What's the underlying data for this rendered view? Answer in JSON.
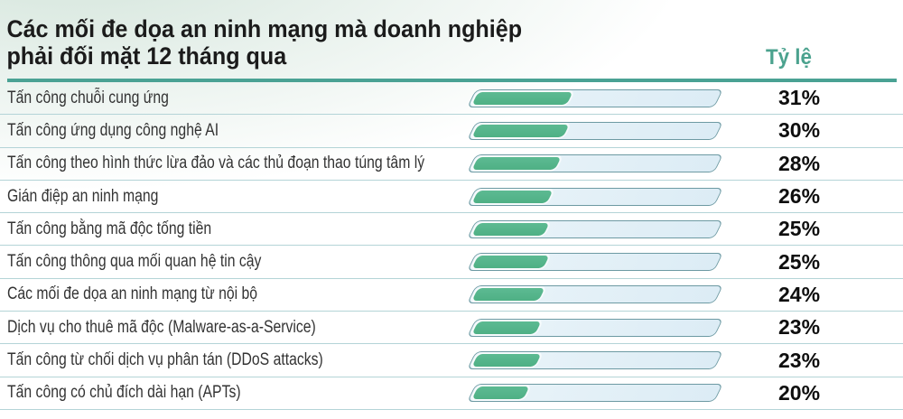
{
  "header": {
    "title_line1": "Các mối đe dọa an ninh mạng mà doanh nghiệp",
    "title_line2": "phải đối mặt 12 tháng qua",
    "rate_label": "Tỷ lệ"
  },
  "colors": {
    "accent_teal": "#4aa294",
    "rate_label_text": "#4ba28e",
    "bar_fill": "#55b28a",
    "bar_track": "#ddecf5",
    "bar_border": "#6d9aa3",
    "separator": "#b4d4d7",
    "percent_text": "#0e0e0e"
  },
  "chart_data": {
    "type": "bar",
    "orientation": "horizontal",
    "title": "Các mối đe dọa an ninh mạng mà doanh nghiệp phải đối mặt 12 tháng qua",
    "value_column_label": "Tỷ lệ",
    "categories": [
      "Tấn công chuỗi cung ứng",
      "Tấn công ứng dụng công nghệ AI",
      "Tấn công theo hình thức lừa đảo và các thủ đoạn thao túng tâm lý",
      "Gián điệp an ninh mạng",
      "Tấn công bằng mã độc tống tiền",
      "Tấn công thông qua mối quan hệ tin cậy",
      "Các mối đe dọa an ninh mạng từ nội bộ",
      "Dịch vụ cho thuê mã độc (Malware-as-a-Service)",
      "Tấn công từ chối dịch vụ phân tán (DDoS attacks)",
      "Tấn công có chủ đích dài hạn (APTs)"
    ],
    "values": [
      31,
      30,
      28,
      26,
      25,
      25,
      24,
      23,
      23,
      20
    ],
    "unit": "%",
    "grid": "row-separators",
    "legend": "none"
  }
}
